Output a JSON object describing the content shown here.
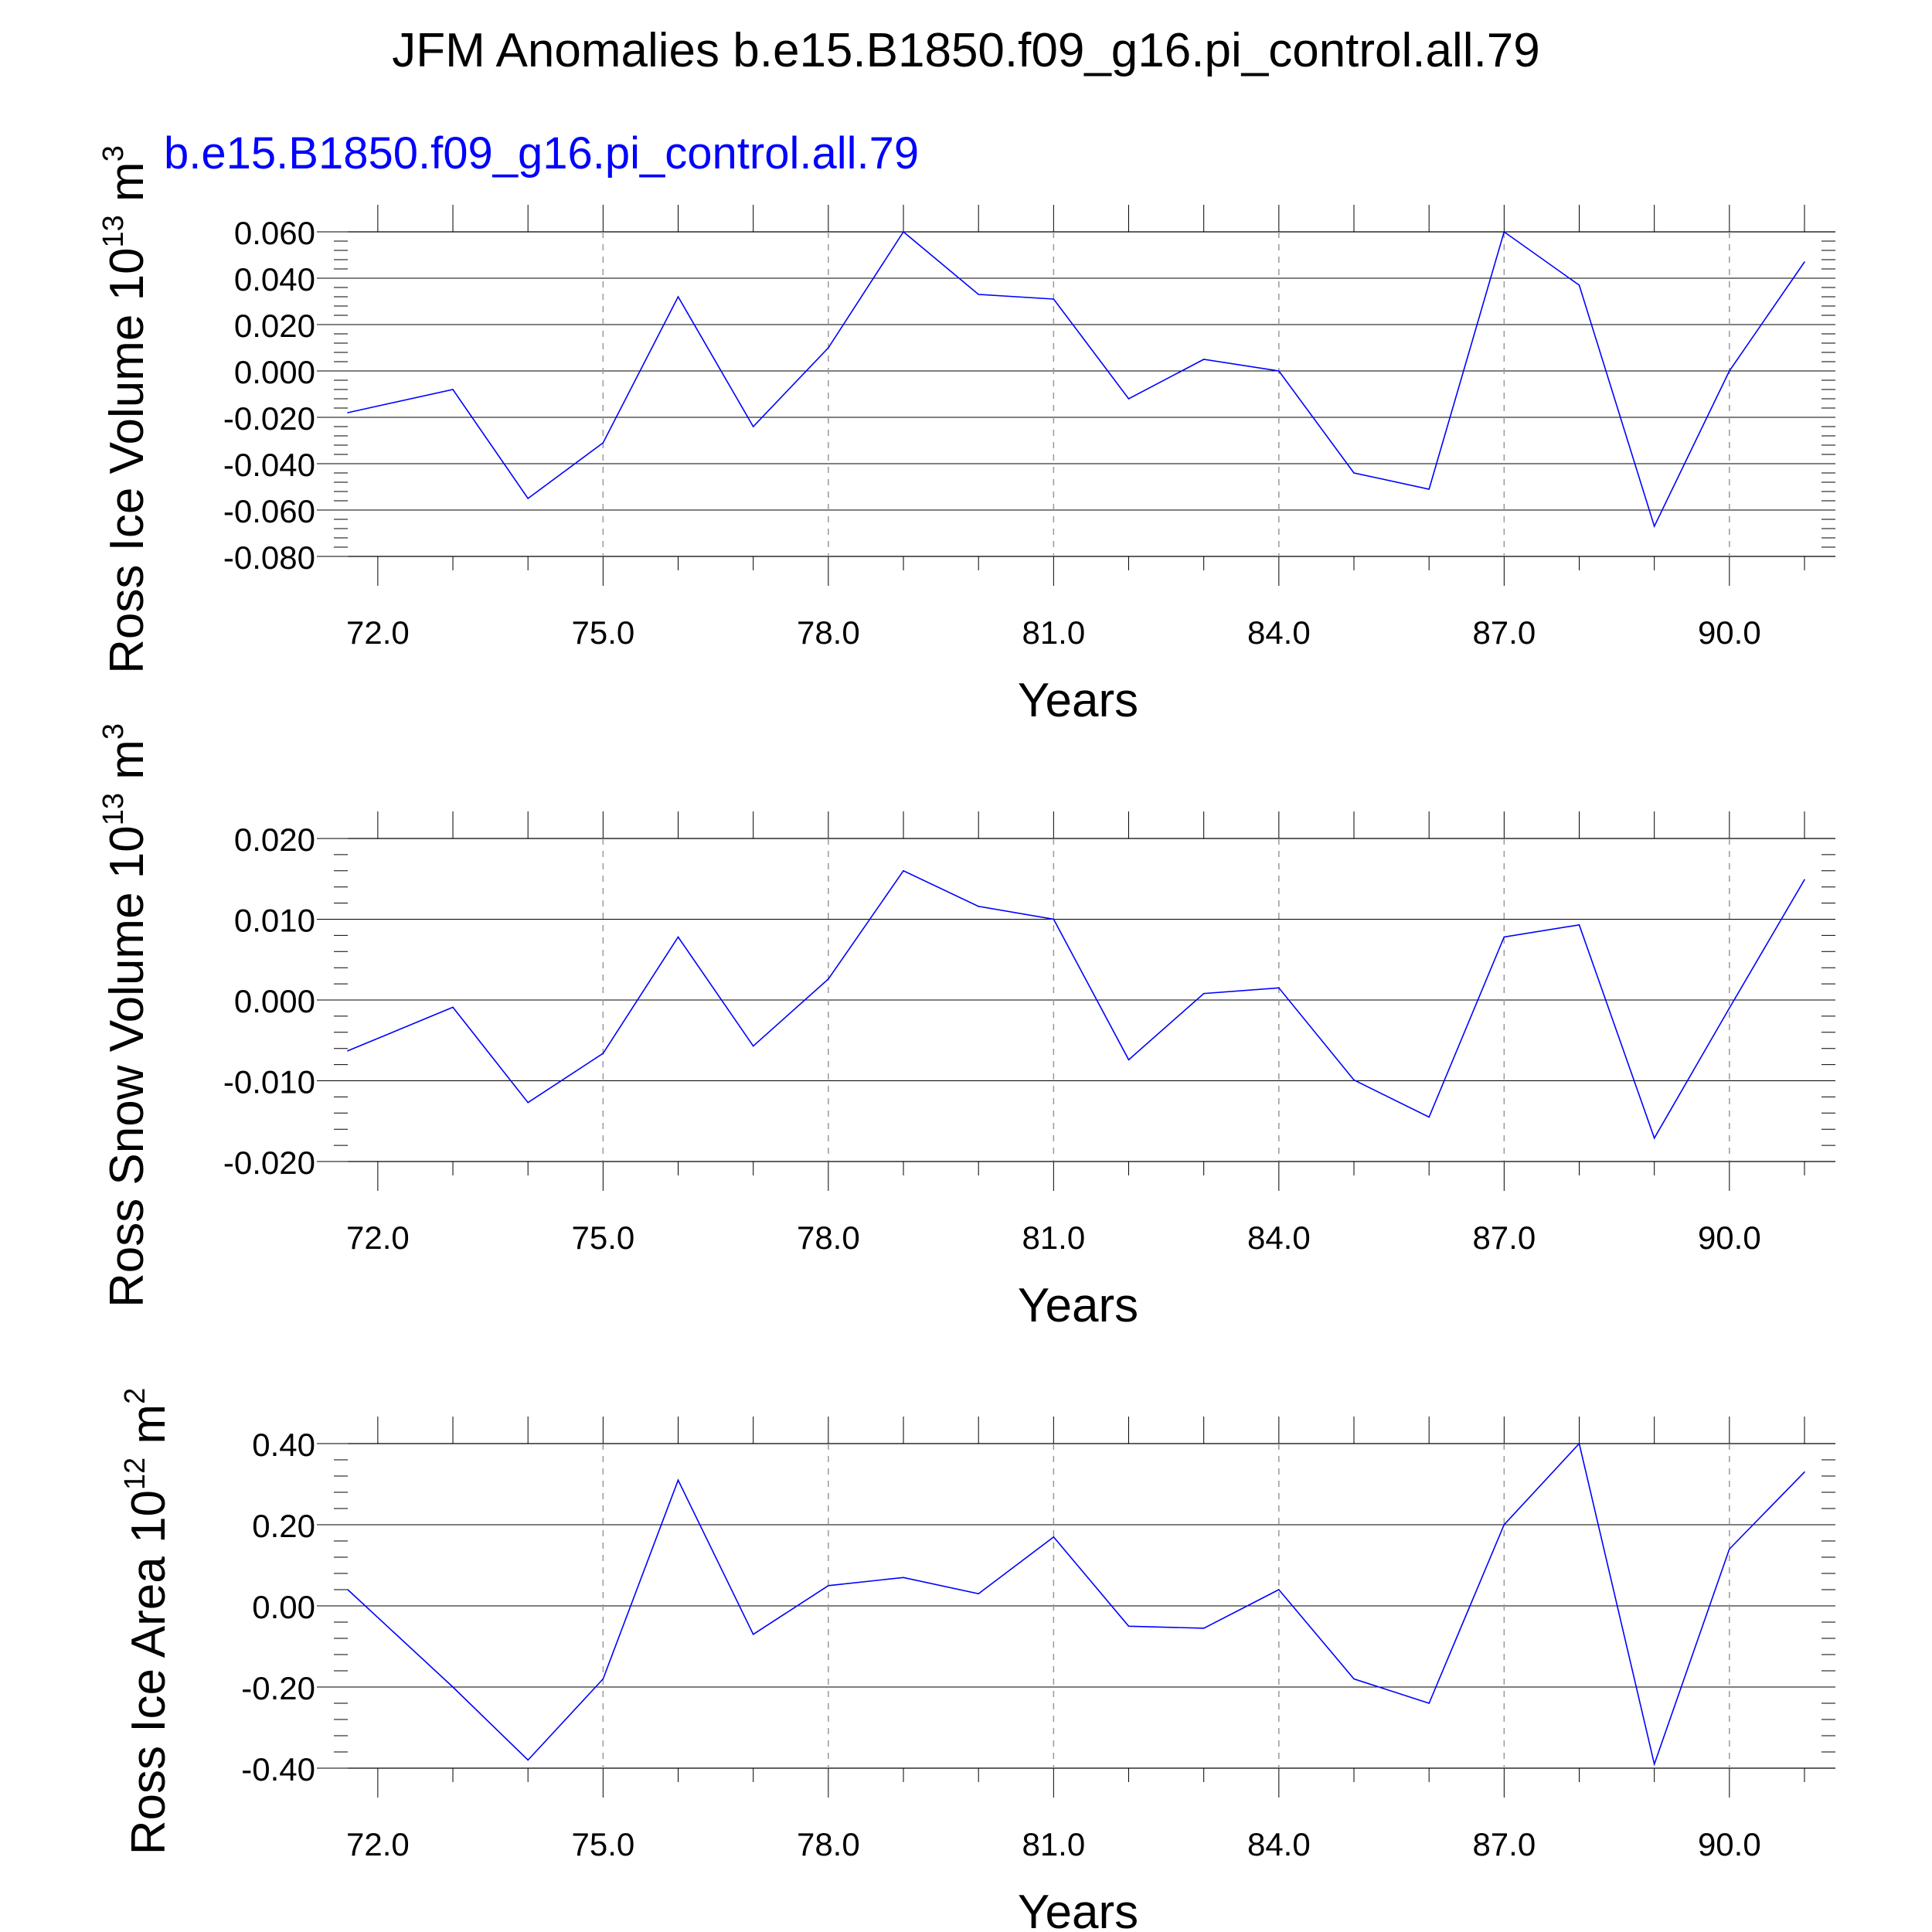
{
  "title": "JFM Anomalies b.e15.B1850.f09_g16.pi_control.all.79",
  "series_color": "#0000ff",
  "chart_data": [
    {
      "type": "line",
      "series_label": "b.e15.B1850.f09_g16.pi_control.all.79",
      "ylabel": "Ross Ice Volume 10",
      "ylabel_exp": "13",
      "ylabel_unit": "m",
      "ylabel_unit_exp": "3",
      "xlabel": "Years",
      "xlim": [
        71.6,
        91.0
      ],
      "ylim": [
        -0.08,
        0.06
      ],
      "yticks": [
        "0.060",
        "0.040",
        "0.020",
        "0.000",
        "-0.020",
        "-0.040",
        "-0.060",
        "-0.080"
      ],
      "xticks": [
        "72.0",
        "75.0",
        "78.0",
        "81.0",
        "84.0",
        "87.0",
        "90.0"
      ],
      "grid_x": true,
      "series": [
        {
          "x": [
            71.6,
            73,
            74,
            75,
            76,
            77,
            78,
            79,
            80,
            81,
            82,
            83,
            84,
            85,
            86,
            87,
            88,
            89,
            90,
            91
          ],
          "values": [
            -0.018,
            -0.008,
            -0.055,
            -0.031,
            0.032,
            -0.024,
            0.01,
            0.06,
            0.033,
            0.031,
            -0.012,
            0.005,
            0.0,
            -0.044,
            -0.051,
            0.06,
            0.037,
            -0.067,
            0.0,
            0.047
          ]
        }
      ]
    },
    {
      "type": "line",
      "ylabel": "Ross Snow Volume 10",
      "ylabel_exp": "13",
      "ylabel_unit": "m",
      "ylabel_unit_exp": "3",
      "xlabel": "Years",
      "xlim": [
        71.6,
        91.0
      ],
      "ylim": [
        -0.02,
        0.02
      ],
      "yticks": [
        "0.020",
        "0.010",
        "0.000",
        "-0.010",
        "-0.020"
      ],
      "xticks": [
        "72.0",
        "75.0",
        "78.0",
        "81.0",
        "84.0",
        "87.0",
        "90.0"
      ],
      "grid_x": true,
      "series": [
        {
          "x": [
            71.6,
            73,
            74,
            75,
            76,
            77,
            78,
            79,
            80,
            81,
            82,
            83,
            84,
            85,
            86,
            87,
            88,
            89,
            90,
            91
          ],
          "values": [
            -0.0063,
            -0.0009,
            -0.0127,
            -0.0066,
            0.0078,
            -0.0057,
            0.0026,
            0.016,
            0.0116,
            0.01,
            -0.0074,
            0.0008,
            0.0015,
            -0.0099,
            -0.0145,
            0.0078,
            0.0093,
            -0.0171,
            -0.001,
            0.0149
          ]
        }
      ]
    },
    {
      "type": "line",
      "ylabel": "Ross Ice Area 10",
      "ylabel_exp": "12",
      "ylabel_unit": "m",
      "ylabel_unit_exp": "2",
      "xlabel": "Years",
      "xlim": [
        71.6,
        91.0
      ],
      "ylim": [
        -0.4,
        0.4
      ],
      "yticks": [
        "0.40",
        "0.20",
        "0.00",
        "-0.20",
        "-0.40"
      ],
      "xticks": [
        "72.0",
        "75.0",
        "78.0",
        "81.0",
        "84.0",
        "87.0",
        "90.0"
      ],
      "grid_x": true,
      "series": [
        {
          "x": [
            71.6,
            73,
            74,
            75,
            76,
            77,
            78,
            79,
            80,
            81,
            82,
            83,
            84,
            85,
            86,
            87,
            88,
            89,
            90,
            91
          ],
          "values": [
            0.04,
            -0.2,
            -0.38,
            -0.18,
            0.31,
            -0.07,
            0.05,
            0.07,
            0.03,
            0.17,
            -0.05,
            -0.055,
            0.04,
            -0.18,
            -0.24,
            0.2,
            0.4,
            -0.39,
            0.14,
            0.33
          ]
        }
      ]
    }
  ]
}
